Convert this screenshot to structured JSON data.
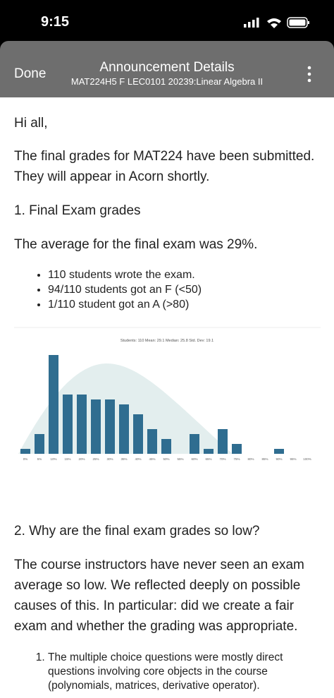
{
  "status_bar": {
    "time": "9:15"
  },
  "header": {
    "left_button": "Done",
    "title": "Announcement Details",
    "subtitle": "MAT224H5 F LEC0101 20239:Linear Algebra II"
  },
  "body": {
    "greeting": "Hi all,",
    "intro": "The final grades for MAT224 have been submitted. They will appear in Acorn shortly.",
    "section_1_heading": "1. Final Exam grades",
    "average_text": "The average for the final exam was 29%.",
    "bullets": [
      "110 students wrote the exam.",
      "94/110 students got an F (<50)",
      "1/110 student got an A (>80)"
    ],
    "section_2_heading": "2. Why are the final exam grades so low?",
    "section_2_text": "The course instructors have never seen an exam average so low. We reflected deeply on possible causes of this. In particular: did we create a fair exam and whether the grading was appropriate.",
    "numbered_list": [
      "The multiple choice questions were mostly direct questions involving core objects in the course (polynomials, matrices, derivative operator)."
    ]
  },
  "chart_data": {
    "type": "bar",
    "title": "Students: 110  Mean: 29.1  Median: 25.8  Std. Dev: 19.1",
    "categories": [
      "0%",
      "5%",
      "10%",
      "15%",
      "20%",
      "25%",
      "30%",
      "35%",
      "40%",
      "45%",
      "50%",
      "55%",
      "60%",
      "65%",
      "70%",
      "75%",
      "80%",
      "85%",
      "90%",
      "95%",
      "100%"
    ],
    "values": [
      1,
      4,
      20,
      12,
      12,
      11,
      11,
      10,
      8,
      5,
      3,
      0,
      4,
      1,
      5,
      2,
      0,
      0,
      1,
      0,
      0
    ],
    "color": "#2f6d90"
  }
}
